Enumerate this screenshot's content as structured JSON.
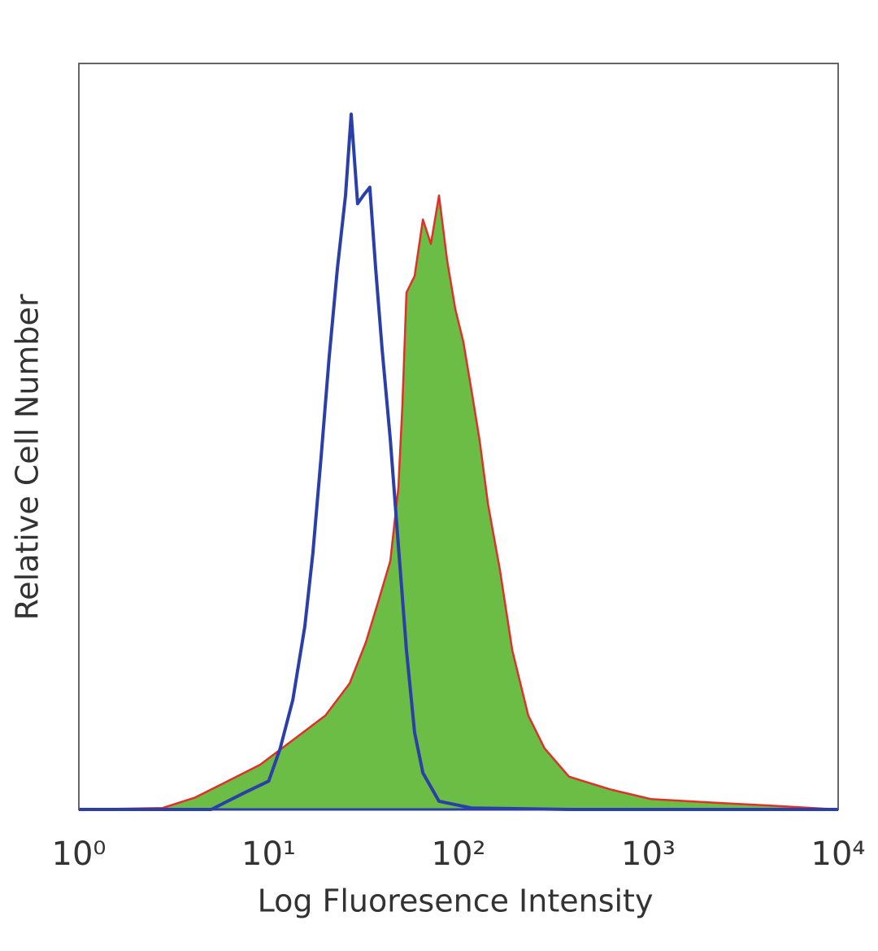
{
  "chart_data": {
    "type": "histogram-overlay",
    "xlabel": "Log Fluoresence Intensity",
    "ylabel": "Relative Cell Number",
    "xscale": "log",
    "xlim": [
      1,
      10000
    ],
    "xticks": [
      {
        "value": 1,
        "label": "10⁰"
      },
      {
        "value": 10,
        "label": "10¹"
      },
      {
        "value": 100,
        "label": "10²"
      },
      {
        "value": 1000,
        "label": "10³"
      },
      {
        "value": 10000,
        "label": "10⁴"
      }
    ],
    "ylim": [
      0,
      100
    ],
    "grid": false,
    "series": [
      {
        "color": "#6cbd45",
        "edge_color": "#e0302a",
        "filled": true,
        "x": [
          1,
          2.76,
          4.1,
          6.08,
          9.02,
          13.4,
          19.9,
          26.7,
          32.5,
          37.7,
          43.7,
          48.2,
          50.6,
          53.2,
          58.7,
          64.9,
          71.5,
          78.9,
          87.1,
          96.1,
          106,
          117,
          129,
          143,
          165,
          192,
          233,
          284,
          382,
          626,
          1030,
          2250,
          4500,
          10000
        ],
        "values": [
          0,
          0.2,
          1.6,
          3.8,
          6.0,
          9.3,
          12.6,
          16.9,
          22.4,
          27.8,
          33.3,
          43.1,
          54.0,
          69.3,
          71.5,
          79.1,
          75.8,
          82.3,
          73.6,
          67.1,
          62.7,
          56.2,
          49.6,
          40.9,
          32.2,
          21.3,
          12.6,
          8.2,
          4.4,
          2.7,
          1.4,
          0.9,
          0.5,
          0
        ]
      },
      {
        "color": "#2b3fa8",
        "filled": false,
        "x": [
          1,
          4.99,
          6.08,
          7.4,
          10.0,
          11.5,
          13.4,
          15.5,
          17.1,
          18.9,
          20.8,
          23.0,
          25.4,
          27.2,
          29.4,
          31.5,
          34.1,
          36.6,
          39.6,
          43.7,
          48.2,
          53.2,
          58.7,
          64.9,
          78.9,
          117,
          382,
          10000
        ],
        "values": [
          0,
          0,
          1.1,
          2.2,
          3.8,
          8.2,
          14.7,
          24.5,
          34.4,
          47.4,
          60.5,
          72.5,
          82.3,
          93.2,
          81.2,
          82.3,
          83.4,
          72.5,
          61.6,
          49.6,
          35.4,
          21.3,
          10.3,
          4.9,
          1.1,
          0.2,
          0,
          0
        ]
      }
    ]
  }
}
